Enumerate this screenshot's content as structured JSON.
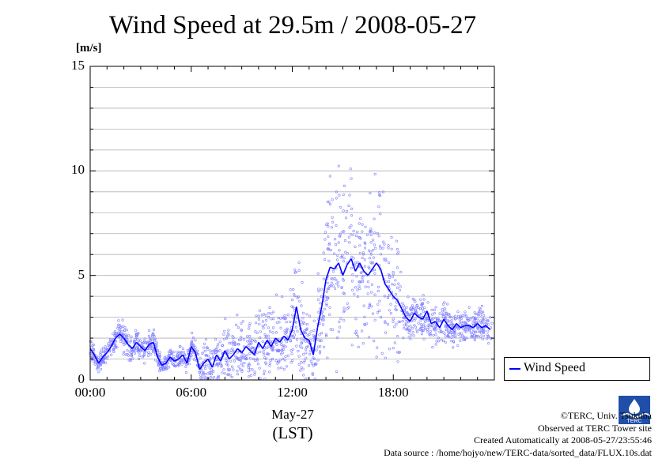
{
  "chart_data": {
    "type": "line",
    "title": "Wind Speed at 29.5m / 2008-05-27",
    "ylabel": "[m/s]",
    "ylim": [
      0,
      15
    ],
    "yticks": [
      0,
      5,
      10,
      15
    ],
    "xlim": [
      0,
      24
    ],
    "xticks": [
      {
        "value": 0,
        "label": "00:00"
      },
      {
        "value": 6,
        "label": "06:00"
      },
      {
        "value": 12,
        "label": "12:00"
      },
      {
        "value": 18,
        "label": "18:00"
      }
    ],
    "xlabel_date": "May-27",
    "xlabel_tz": "(LST)",
    "grid": true,
    "legend_position": "bottom-right outside plot",
    "series": [
      {
        "name": "Wind Speed",
        "color": "#0000ff",
        "x": [
          0.0,
          0.25,
          0.5,
          0.75,
          1.0,
          1.25,
          1.5,
          1.75,
          2.0,
          2.25,
          2.5,
          2.75,
          3.0,
          3.25,
          3.5,
          3.75,
          4.0,
          4.25,
          4.5,
          4.75,
          5.0,
          5.25,
          5.5,
          5.75,
          6.0,
          6.25,
          6.5,
          6.75,
          7.0,
          7.25,
          7.5,
          7.75,
          8.0,
          8.25,
          8.5,
          8.75,
          9.0,
          9.25,
          9.5,
          9.75,
          10.0,
          10.25,
          10.5,
          10.75,
          11.0,
          11.25,
          11.5,
          11.75,
          12.0,
          12.25,
          12.5,
          12.75,
          13.0,
          13.25,
          13.5,
          13.75,
          14.0,
          14.25,
          14.5,
          14.75,
          15.0,
          15.25,
          15.5,
          15.75,
          16.0,
          16.25,
          16.5,
          16.75,
          17.0,
          17.25,
          17.5,
          17.75,
          18.0,
          18.25,
          18.5,
          18.75,
          19.0,
          19.25,
          19.5,
          19.75,
          20.0,
          20.25,
          20.5,
          20.75,
          21.0,
          21.25,
          21.5,
          21.75,
          22.0,
          22.25,
          22.5,
          22.75,
          23.0,
          23.25,
          23.5,
          23.75
        ],
        "y": [
          1.5,
          1.2,
          0.8,
          1.1,
          1.3,
          1.6,
          2.0,
          2.2,
          2.0,
          1.7,
          1.5,
          1.8,
          1.6,
          1.4,
          1.7,
          1.8,
          1.1,
          0.7,
          0.8,
          1.1,
          0.9,
          1.0,
          1.2,
          0.8,
          1.6,
          1.3,
          0.5,
          0.8,
          1.0,
          0.6,
          1.2,
          0.9,
          1.4,
          1.0,
          1.2,
          1.5,
          1.3,
          1.6,
          1.4,
          1.2,
          1.8,
          1.5,
          1.9,
          1.6,
          2.0,
          1.8,
          2.1,
          1.9,
          2.4,
          3.5,
          2.4,
          2.0,
          1.9,
          1.2,
          2.5,
          3.5,
          4.8,
          5.4,
          5.3,
          5.6,
          5.0,
          5.5,
          5.8,
          5.2,
          5.6,
          5.2,
          5.0,
          5.3,
          5.6,
          5.3,
          4.6,
          4.3,
          4.0,
          3.8,
          3.4,
          3.0,
          2.8,
          3.2,
          3.0,
          2.9,
          3.3,
          2.7,
          2.8,
          2.5,
          2.9,
          2.6,
          2.4,
          2.7,
          2.5,
          2.6,
          2.6,
          2.5,
          2.7,
          2.5,
          2.6,
          2.4
        ]
      }
    ]
  },
  "credits": {
    "copyright": "©TERC, Univ. Tsukuba",
    "observed": "Observed at TERC Tower site",
    "created": "Created Automatically at 2008-05-27/23:55:46",
    "source": "Data source : /home/hojyo/new/TERC-data/sorted_data/FLUX.10s.dat"
  },
  "logo_text": "TERC"
}
